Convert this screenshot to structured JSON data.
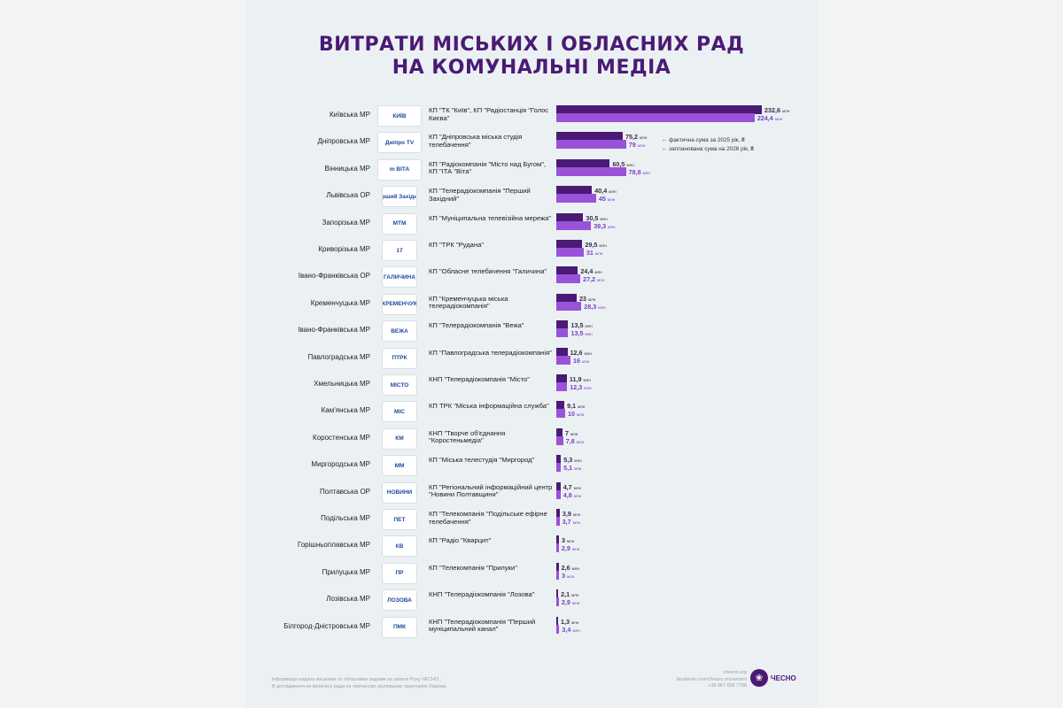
{
  "title_line1": "ВИТРАТИ МІСЬКИХ І ОБЛАСНИХ РАД",
  "title_line2": "НА КОМУНАЛЬНІ МЕДІА",
  "legend": {
    "actual": "← фактична сума за 2025 рік, ₴",
    "planned": "← запланована сума на 2026 рік, ₴"
  },
  "unit": "млн",
  "colors": {
    "actual": "#4a1a75",
    "planned": "#9a52d8"
  },
  "footer": {
    "line1": "Інформація надана міськими та обласними радами на запити Руху ЧЕСНО.",
    "line2": "В дослідження не включені ради на тимчасово окупованих територіях України.",
    "site": "chesno.org",
    "facebook": "facebook.com/chesno.movement",
    "phone": "+38 067 658 7798",
    "brand": "ЧЕСНО"
  },
  "chart_data": {
    "type": "bar",
    "title": "ВИТРАТИ МІСЬКИХ І ОБЛАСНИХ РАД НА КОМУНАЛЬНІ МЕДІА",
    "orientation": "horizontal",
    "series": [
      {
        "name": "фактична сума за 2025 рік, ₴",
        "color": "#4a1a75"
      },
      {
        "name": "запланована сума на 2026 рік, ₴",
        "color": "#9a52d8"
      }
    ],
    "max_value": 232.6,
    "rows": [
      {
        "council": "Київська МР",
        "media": "КП \"ТК \"Київ\", КП \"Радіостанція \"Голос Києва\"",
        "logo": "КИЇВ",
        "actual": 232.6,
        "actual_label": "232,6",
        "planned": 224.4,
        "planned_label": "224,4"
      },
      {
        "council": "Дніпровська МР",
        "media": "КП \"Дніпровська міська студія телебачення\"",
        "logo": "Дніпро TV",
        "actual": 75.2,
        "actual_label": "75,2",
        "planned": 79,
        "planned_label": "79"
      },
      {
        "council": "Вінницька МР",
        "media": "КП \"Радіокомпанія \"Місто над Бугом\", КП \"ІТА \"Віта\"",
        "logo": "m  ВІТА",
        "actual": 60.5,
        "actual_label": "60,5",
        "planned": 78.8,
        "planned_label": "78,8"
      },
      {
        "council": "Львівська ОР",
        "media": "КП \"Телерадіокомпанія \"Перший Західний\"",
        "logo": "Перший Західний",
        "actual": 40.4,
        "actual_label": "40,4",
        "planned": 45,
        "planned_label": "45"
      },
      {
        "council": "Запорізька МР",
        "media": "КП \"Муніципальна телевізійна мережа\"",
        "logo": "МТМ",
        "actual": 30.5,
        "actual_label": "30,5",
        "planned": 39.3,
        "planned_label": "39,3"
      },
      {
        "council": "Криворізька МР",
        "media": "КП \"ТРК \"Рудана\"",
        "logo": "17",
        "actual": 29.5,
        "actual_label": "29,5",
        "planned": 31,
        "planned_label": "31"
      },
      {
        "council": "Івано-Франківська ОР",
        "media": "КП \"Обласне телебачення \"Галичина\"",
        "logo": "ГАЛИЧИНА",
        "actual": 24.4,
        "actual_label": "24,4",
        "planned": 27.2,
        "planned_label": "27,2"
      },
      {
        "council": "Кременчуцька МР",
        "media": "КП \"Кременчуцька міська телерадіокомпанія\"",
        "logo": "КРЕМЕНЧУК",
        "actual": 23,
        "actual_label": "23",
        "planned": 28.3,
        "planned_label": "28,3"
      },
      {
        "council": "Івано-Франківська МР",
        "media": "КП \"Телерадіокомпанія \"Вежа\"",
        "logo": "ВЕЖА",
        "actual": 13.5,
        "actual_label": "13,5",
        "planned": 13.5,
        "planned_label": "13,5"
      },
      {
        "council": "Павлоградська МР",
        "media": "КП \"Павлоградська телерадіокомпанія\"",
        "logo": "ПТРК",
        "actual": 12.6,
        "actual_label": "12,6",
        "planned": 16,
        "planned_label": "16"
      },
      {
        "council": "Хмельницька МР",
        "media": "КНП \"Телерадіокомпанія \"Місто\"",
        "logo": "МІСТО",
        "actual": 11.9,
        "actual_label": "11,9",
        "planned": 12.3,
        "planned_label": "12,3"
      },
      {
        "council": "Кам'янська МР",
        "media": "КП ТРК \"Міська інформаційна служба\"",
        "logo": "МІС",
        "actual": 9.1,
        "actual_label": "9,1",
        "planned": 10,
        "planned_label": "10"
      },
      {
        "council": "Коростенська МР",
        "media": "КНП \"Творче об'єднання \"Коростеньмедіа\"",
        "logo": "КМ",
        "actual": 7,
        "actual_label": "7",
        "planned": 7.8,
        "planned_label": "7,8"
      },
      {
        "council": "Миргородська МР",
        "media": "КП \"Міська телестудія \"Миргород\"",
        "logo": "ММ",
        "actual": 5.3,
        "actual_label": "5,3",
        "planned": 5.1,
        "planned_label": "5,1"
      },
      {
        "council": "Полтавська ОР",
        "media": "КП \"Регіональний інформаційний центр \"Новини Полтавщини\"",
        "logo": "НОВИНИ",
        "actual": 4.7,
        "actual_label": "4,7",
        "planned": 4.8,
        "planned_label": "4,8"
      },
      {
        "council": "Подільська МР",
        "media": "КП \"Телекомпанія \"Подільське ефірне телебачення\"",
        "logo": "ПЕТ",
        "actual": 3.9,
        "actual_label": "3,9",
        "planned": 3.7,
        "planned_label": "3,7"
      },
      {
        "council": "Горішньоплавська МР",
        "media": "КП \"Радіо \"Кварцит\"",
        "logo": "КВ",
        "actual": 3,
        "actual_label": "3",
        "planned": 2.9,
        "planned_label": "2,9"
      },
      {
        "council": "Прилуцька МР",
        "media": "КП \"Телекомпанія \"Прилуки\"",
        "logo": "ПР",
        "actual": 2.6,
        "actual_label": "2,6",
        "planned": 3,
        "planned_label": "3"
      },
      {
        "council": "Лозівська МР",
        "media": "КНП \"Телерадіокомпанія \"Лозова\"",
        "logo": "ЛОЗОВА",
        "actual": 2.1,
        "actual_label": "2,1",
        "planned": 2.9,
        "planned_label": "2,9"
      },
      {
        "council": "Білгород-Дністровська МР",
        "media": "КНП \"Телерадіокомпанія \"Перший муніципальний канал\"",
        "logo": "ПМК",
        "actual": 1.3,
        "actual_label": "1,3",
        "planned": 3.4,
        "planned_label": "3,4"
      }
    ]
  }
}
